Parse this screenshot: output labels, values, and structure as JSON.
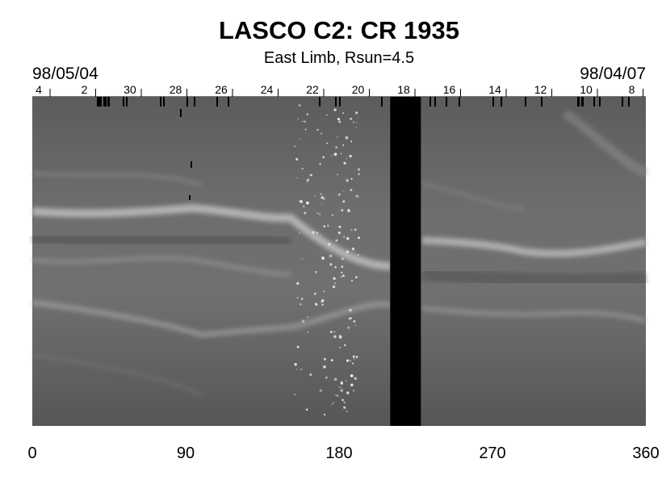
{
  "chart_data": {
    "type": "heatmap",
    "title": "LASCO C2: CR 1935",
    "subtitle": "East Limb, Rsun=4.5",
    "start_date": "98/05/04",
    "end_date": "98/04/07",
    "x_range": [
      0,
      360
    ],
    "x_ticks": [
      0,
      90,
      180,
      270,
      360
    ],
    "day_labels": [
      4,
      2,
      30,
      28,
      26,
      24,
      22,
      20,
      18,
      16,
      14,
      12,
      10,
      8
    ],
    "data_gap_longitude": [
      210,
      228
    ],
    "colormap": "grayscale",
    "background_color": "#6b6b6b",
    "gap_color": "#000000"
  }
}
